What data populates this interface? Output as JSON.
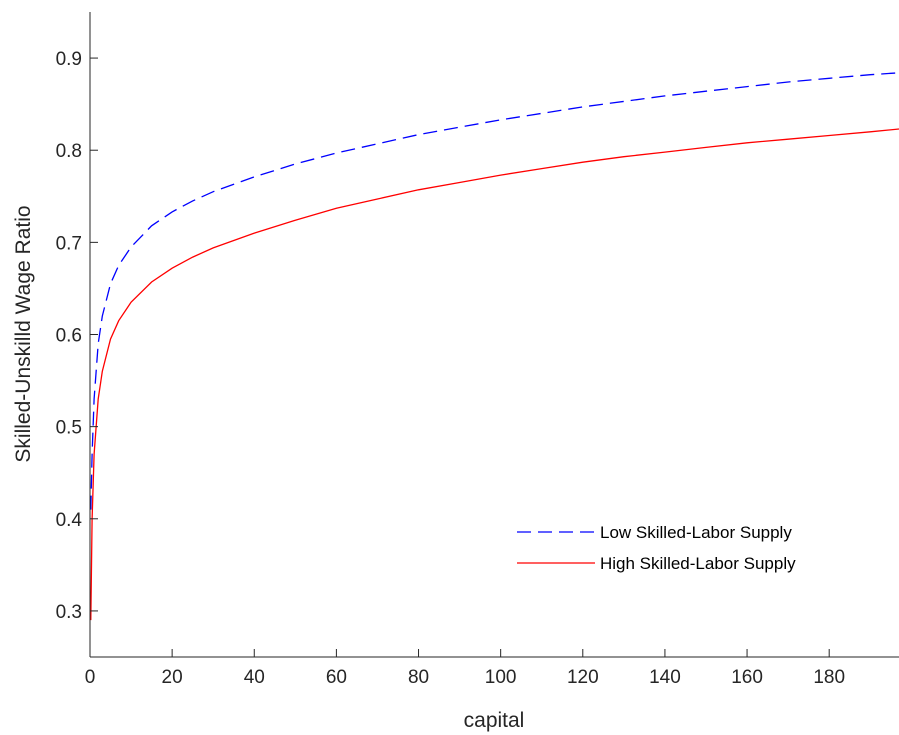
{
  "chart_data": {
    "type": "line",
    "title": "",
    "xlabel": "capital",
    "ylabel": "Skilled-Unskilld Wage Ratio",
    "xlim": [
      0,
      197
    ],
    "ylim": [
      0.25,
      0.95
    ],
    "xticks": [
      0,
      20,
      40,
      60,
      80,
      100,
      120,
      140,
      160,
      180
    ],
    "xtick_labels": [
      "0",
      "20",
      "40",
      "60",
      "80",
      "100",
      "120",
      "140",
      "160",
      "180"
    ],
    "yticks": [
      0.3,
      0.4,
      0.5,
      0.6,
      0.7,
      0.8,
      0.9
    ],
    "ytick_labels": [
      "0.3",
      "0.4",
      "0.5",
      "0.6",
      "0.7",
      "0.8",
      "0.9"
    ],
    "grid": false,
    "legend_position": "bottom-right",
    "series": [
      {
        "name": "Low Skilled-Labor Supply",
        "color": "#0000ff",
        "style": "dashed",
        "x": [
          0.2,
          0.5,
          1,
          2,
          3,
          5,
          7,
          10,
          15,
          20,
          25,
          30,
          40,
          50,
          60,
          70,
          80,
          90,
          100,
          110,
          120,
          130,
          140,
          150,
          160,
          170,
          180,
          190,
          197
        ],
        "y": [
          0.41,
          0.47,
          0.53,
          0.59,
          0.62,
          0.655,
          0.675,
          0.695,
          0.718,
          0.733,
          0.745,
          0.755,
          0.771,
          0.785,
          0.797,
          0.807,
          0.817,
          0.825,
          0.833,
          0.84,
          0.847,
          0.853,
          0.859,
          0.864,
          0.869,
          0.874,
          0.878,
          0.882,
          0.884
        ]
      },
      {
        "name": "High Skilled-Labor Supply",
        "color": "#ff0000",
        "style": "solid",
        "x": [
          0.2,
          0.5,
          1,
          2,
          3,
          5,
          7,
          10,
          15,
          20,
          25,
          30,
          40,
          50,
          60,
          70,
          80,
          90,
          100,
          110,
          120,
          130,
          140,
          150,
          160,
          170,
          180,
          190,
          197
        ],
        "y": [
          0.29,
          0.4,
          0.47,
          0.53,
          0.56,
          0.595,
          0.615,
          0.635,
          0.657,
          0.672,
          0.684,
          0.694,
          0.71,
          0.724,
          0.737,
          0.747,
          0.757,
          0.765,
          0.773,
          0.78,
          0.787,
          0.793,
          0.798,
          0.803,
          0.808,
          0.812,
          0.816,
          0.82,
          0.823
        ]
      }
    ]
  }
}
